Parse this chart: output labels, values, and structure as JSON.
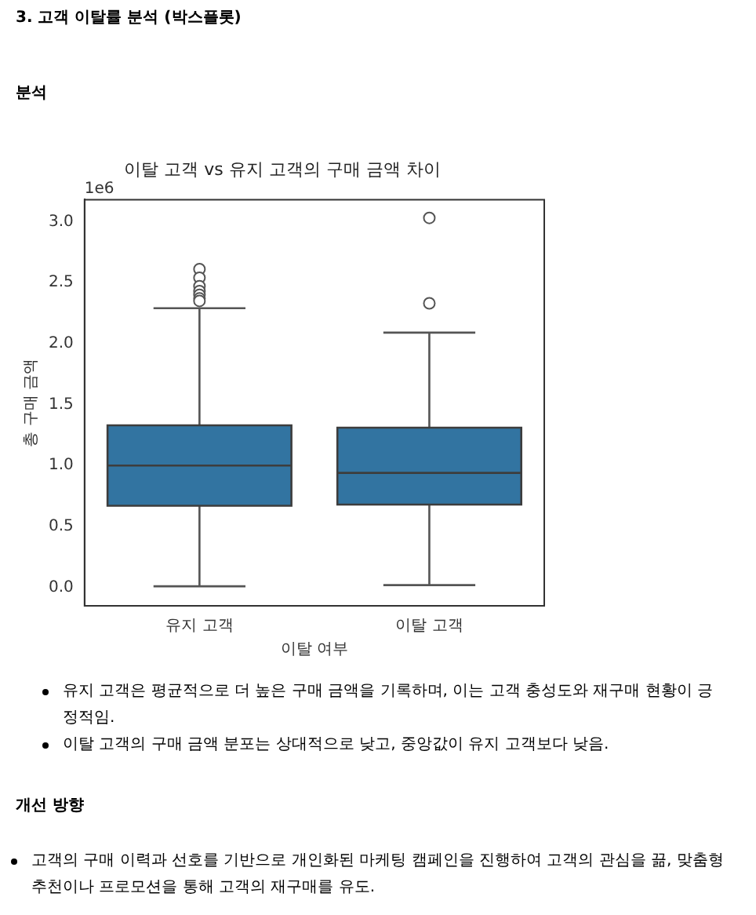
{
  "chart_data": {
    "type": "box",
    "title": "이탈 고객 vs 유지 고객의 구매 금액 차이",
    "xlabel": "이탈 여부",
    "ylabel": "총 구매 금액",
    "categories": [
      "유지 고객",
      "이탈 고객"
    ],
    "boxes": [
      {
        "low": 0.01,
        "q1": 0.67,
        "median": 1.0,
        "q3": 1.33,
        "high": 2.29,
        "outliers": [
          2.61,
          2.54,
          2.47,
          2.43,
          2.4,
          2.37,
          2.35
        ]
      },
      {
        "low": 0.02,
        "q1": 0.68,
        "median": 0.94,
        "q3": 1.31,
        "high": 2.09,
        "outliers": [
          3.03,
          2.33
        ]
      }
    ],
    "color": "#3274a1",
    "ylim": [
      -0.15,
      3.18
    ],
    "yticks": [
      {
        "value": 0,
        "label": "0.0"
      },
      0.5,
      {
        "value": 1,
        "label": "1.0"
      },
      1.5,
      {
        "value": 2,
        "label": "2.0"
      },
      2.5,
      {
        "value": 3,
        "label": "3.0"
      }
    ],
    "grid": false,
    "legend": false,
    "annotations": [
      "3. 고객 이탈률 분석 (박스플롯)",
      "분석",
      "1e6",
      "유지 고객은 평균적으로 더 높은 구매 금액을 기록하며, 이는 고객 충성도와 재구매 현황이 긍정적임.",
      "이탈 고객의 구매 금액 분포는 상대적으로 낮고, 중앙값이 유지 고객보다 낮음.",
      "개선 방향",
      "고객의 구매 이력과 선호를 기반으로 개인화된 마케팅 캠페인을 진행하여 고객의 관심을 끎, 맞춤형 추천이나 프로모션을 통해 고객의 재구매를 유도."
    ]
  }
}
